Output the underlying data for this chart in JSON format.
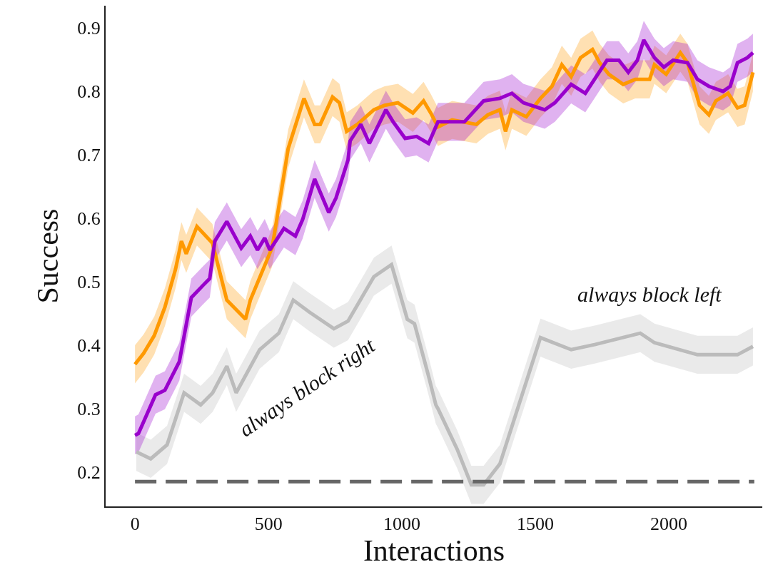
{
  "chart_data": {
    "type": "line",
    "xlabel": "Interactions",
    "ylabel": "Success",
    "xlim": [
      -110,
      2350
    ],
    "xticks": [
      0,
      500,
      1000,
      1500,
      2000
    ],
    "ylim": [
      0.146,
      0.935
    ],
    "yticks": [
      0.2,
      0.3,
      0.4,
      0.5,
      0.6,
      0.7,
      0.8,
      0.9
    ],
    "grid": false,
    "annotations": [
      "always block right",
      "always block left"
    ],
    "series": [
      {
        "color": "#bbbbbb",
        "x": [
          5,
          59,
          120,
          184,
          246,
          291,
          344,
          379,
          467,
          539,
          593,
          654,
          745,
          798,
          895,
          961,
          1020,
          1047,
          1100,
          1127,
          1135,
          1207,
          1260,
          1306,
          1367,
          1519,
          1634,
          1722,
          1893,
          1946,
          2107,
          2257,
          2315
        ],
        "values": [
          0.232,
          0.221,
          0.243,
          0.325,
          0.306,
          0.325,
          0.367,
          0.325,
          0.393,
          0.419,
          0.471,
          0.452,
          0.426,
          0.438,
          0.508,
          0.527,
          0.441,
          0.434,
          0.351,
          0.306,
          0.3,
          0.236,
          0.18,
          0.18,
          0.213,
          0.412,
          0.393,
          0.401,
          0.419,
          0.404,
          0.385,
          0.385,
          0.398
        ],
        "lower": [
          0.202,
          0.191,
          0.213,
          0.295,
          0.276,
          0.295,
          0.337,
          0.295,
          0.363,
          0.389,
          0.441,
          0.422,
          0.396,
          0.408,
          0.478,
          0.497,
          0.411,
          0.404,
          0.321,
          0.276,
          0.27,
          0.206,
          0.15,
          0.15,
          0.183,
          0.382,
          0.363,
          0.371,
          0.389,
          0.374,
          0.355,
          0.355,
          0.368
        ],
        "upper": [
          0.262,
          0.251,
          0.273,
          0.355,
          0.336,
          0.355,
          0.397,
          0.355,
          0.423,
          0.449,
          0.501,
          0.482,
          0.456,
          0.468,
          0.538,
          0.557,
          0.471,
          0.464,
          0.381,
          0.336,
          0.33,
          0.266,
          0.21,
          0.21,
          0.243,
          0.442,
          0.423,
          0.431,
          0.449,
          0.434,
          0.415,
          0.415,
          0.428
        ]
      },
      {
        "color": "#ff9900",
        "x": [
          0,
          32,
          72,
          112,
          152,
          174,
          192,
          232,
          290,
          344,
          414,
          432,
          513,
          521,
          574,
          633,
          673,
          694,
          740,
          766,
          793,
          833,
          895,
          935,
          985,
          1041,
          1081,
          1108,
          1135,
          1188,
          1279,
          1322,
          1367,
          1388,
          1412,
          1466,
          1519,
          1562,
          1599,
          1634,
          1669,
          1714,
          1741,
          1775,
          1829,
          1874,
          1928,
          1946,
          1990,
          2043,
          2070,
          2115,
          2150,
          2176,
          2222,
          2257,
          2284,
          2315
        ],
        "values": [
          0.37,
          0.387,
          0.415,
          0.46,
          0.52,
          0.564,
          0.544,
          0.587,
          0.561,
          0.471,
          0.441,
          0.471,
          0.553,
          0.572,
          0.71,
          0.789,
          0.748,
          0.748,
          0.791,
          0.782,
          0.737,
          0.748,
          0.771,
          0.778,
          0.782,
          0.766,
          0.785,
          0.766,
          0.744,
          0.755,
          0.748,
          0.763,
          0.771,
          0.737,
          0.771,
          0.76,
          0.789,
          0.808,
          0.842,
          0.823,
          0.853,
          0.866,
          0.845,
          0.827,
          0.811,
          0.819,
          0.819,
          0.842,
          0.827,
          0.861,
          0.845,
          0.778,
          0.763,
          0.785,
          0.797,
          0.774,
          0.778,
          0.83
        ],
        "lower": [
          0.34,
          0.357,
          0.385,
          0.43,
          0.49,
          0.534,
          0.514,
          0.557,
          0.531,
          0.441,
          0.411,
          0.441,
          0.523,
          0.542,
          0.68,
          0.759,
          0.718,
          0.718,
          0.761,
          0.752,
          0.707,
          0.718,
          0.741,
          0.748,
          0.752,
          0.736,
          0.755,
          0.736,
          0.714,
          0.725,
          0.718,
          0.733,
          0.741,
          0.707,
          0.741,
          0.73,
          0.759,
          0.778,
          0.812,
          0.793,
          0.823,
          0.836,
          0.815,
          0.797,
          0.781,
          0.789,
          0.789,
          0.812,
          0.797,
          0.831,
          0.815,
          0.748,
          0.733,
          0.755,
          0.767,
          0.744,
          0.748,
          0.8
        ],
        "upper": [
          0.4,
          0.417,
          0.445,
          0.49,
          0.55,
          0.594,
          0.574,
          0.617,
          0.591,
          0.501,
          0.471,
          0.501,
          0.583,
          0.602,
          0.74,
          0.819,
          0.778,
          0.778,
          0.821,
          0.812,
          0.767,
          0.778,
          0.801,
          0.808,
          0.812,
          0.796,
          0.815,
          0.796,
          0.774,
          0.785,
          0.778,
          0.793,
          0.801,
          0.767,
          0.801,
          0.79,
          0.819,
          0.838,
          0.872,
          0.853,
          0.883,
          0.896,
          0.875,
          0.857,
          0.841,
          0.849,
          0.849,
          0.872,
          0.857,
          0.891,
          0.875,
          0.808,
          0.793,
          0.815,
          0.827,
          0.804,
          0.808,
          0.86
        ]
      },
      {
        "color": "#9900cc",
        "x": [
          0,
          13,
          77,
          112,
          166,
          211,
          254,
          280,
          299,
          344,
          398,
          432,
          459,
          486,
          505,
          558,
          601,
          628,
          673,
          726,
          753,
          798,
          806,
          846,
          878,
          940,
          967,
          1012,
          1055,
          1100,
          1135,
          1234,
          1306,
          1367,
          1412,
          1455,
          1535,
          1573,
          1634,
          1687,
          1768,
          1813,
          1848,
          1882,
          1906,
          1946,
          1981,
          2016,
          2070,
          2107,
          2150,
          2203,
          2230,
          2257,
          2294,
          2315
        ],
        "values": [
          0.258,
          0.261,
          0.322,
          0.329,
          0.374,
          0.475,
          0.494,
          0.505,
          0.564,
          0.595,
          0.553,
          0.572,
          0.55,
          0.569,
          0.55,
          0.584,
          0.572,
          0.598,
          0.662,
          0.609,
          0.632,
          0.692,
          0.722,
          0.748,
          0.718,
          0.771,
          0.752,
          0.726,
          0.729,
          0.718,
          0.752,
          0.752,
          0.785,
          0.789,
          0.797,
          0.782,
          0.771,
          0.782,
          0.811,
          0.797,
          0.849,
          0.849,
          0.83,
          0.849,
          0.881,
          0.853,
          0.838,
          0.849,
          0.845,
          0.819,
          0.808,
          0.8,
          0.808,
          0.845,
          0.853,
          0.861
        ],
        "lower": [
          0.228,
          0.231,
          0.292,
          0.299,
          0.344,
          0.445,
          0.464,
          0.475,
          0.534,
          0.565,
          0.523,
          0.542,
          0.52,
          0.539,
          0.52,
          0.554,
          0.542,
          0.568,
          0.632,
          0.579,
          0.602,
          0.662,
          0.692,
          0.718,
          0.688,
          0.741,
          0.722,
          0.696,
          0.699,
          0.688,
          0.722,
          0.722,
          0.755,
          0.759,
          0.767,
          0.752,
          0.741,
          0.752,
          0.781,
          0.767,
          0.819,
          0.819,
          0.8,
          0.819,
          0.851,
          0.823,
          0.808,
          0.819,
          0.815,
          0.789,
          0.778,
          0.77,
          0.778,
          0.815,
          0.823,
          0.831
        ],
        "upper": [
          0.288,
          0.291,
          0.352,
          0.359,
          0.404,
          0.505,
          0.524,
          0.535,
          0.594,
          0.625,
          0.583,
          0.602,
          0.58,
          0.599,
          0.58,
          0.614,
          0.602,
          0.628,
          0.692,
          0.639,
          0.662,
          0.722,
          0.752,
          0.778,
          0.748,
          0.801,
          0.782,
          0.756,
          0.759,
          0.748,
          0.782,
          0.782,
          0.815,
          0.819,
          0.827,
          0.812,
          0.801,
          0.812,
          0.841,
          0.827,
          0.879,
          0.879,
          0.86,
          0.879,
          0.911,
          0.883,
          0.868,
          0.879,
          0.875,
          0.849,
          0.838,
          0.83,
          0.838,
          0.875,
          0.883,
          0.891
        ]
      },
      {
        "color": "#666666",
        "line_style": "dashed",
        "x": [
          0,
          2320
        ],
        "values": [
          0.185,
          0.185
        ]
      }
    ]
  }
}
